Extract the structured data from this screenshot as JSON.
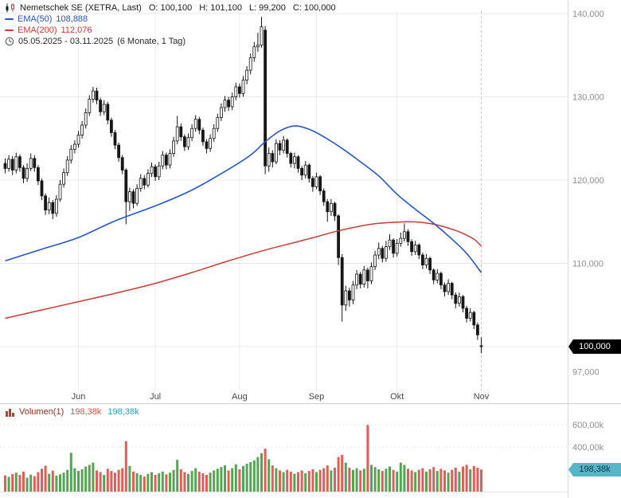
{
  "header": {
    "instrument": "Nemetschek SE (XETRA, Last)",
    "ohlc": [
      {
        "label": "O:",
        "value": "100,100"
      },
      {
        "label": "H:",
        "value": "101,100"
      },
      {
        "label": "L:",
        "value": "99,200"
      },
      {
        "label": "C:",
        "value": "100,000"
      }
    ],
    "ema50": {
      "label": "EMA(50)",
      "value": "108,888"
    },
    "ema200": {
      "label": "EMA(200)",
      "value": "112,076"
    },
    "date_range": "05.05.2025 - 03.11.2025",
    "period": "(6 Monate, 1 Tag)"
  },
  "price_badge": "100,000",
  "volume_pane": {
    "label": "Volumen(1)",
    "value_red": "198,38k",
    "value_teal": "198,38k",
    "badge": "198,38k"
  },
  "colors": {
    "candle_up": "#ffffff",
    "candle_down": "#161616",
    "ema50": "#2457c5",
    "ema200": "#cc3b33",
    "volume_up": "#55a455",
    "volume_down": "#dd5f57",
    "volume_label": "#9c2b23",
    "volume_value_red": "#e05248",
    "volume_value_teal": "#2ba3bc",
    "badge_price_bg": "#000000",
    "badge_price_text": "#ffffff",
    "badge_volume_bg": "#54b6c8",
    "badge_volume_text": "#0b3a44",
    "grid": "#eaeaea"
  },
  "chart_data": {
    "type": "candlestick+volume",
    "title": "Nemetschek SE (XETRA, Last)",
    "date_range": {
      "start": "05.05.2025",
      "end": "03.11.2025",
      "period": "6 Monate",
      "interval": "1 Tag"
    },
    "last": {
      "open": 100.1,
      "high": 101.1,
      "low": 99.2,
      "close": 100.0
    },
    "ema50_value": 108.888,
    "ema200_value": 112.076,
    "last_volume_k": 198.38,
    "unit_note": "prices shown in thousands (axis labels e.g. 100,000); volume in k shares",
    "candle_format": [
      "open",
      "high",
      "low",
      "close"
    ],
    "y_axis": {
      "ticks": [
        {
          "v": 140,
          "label": "140,000",
          "grid": true
        },
        {
          "v": 130,
          "label": "130,000",
          "grid": true
        },
        {
          "v": 120,
          "label": "120,000",
          "grid": true
        },
        {
          "v": 110,
          "label": "110,000",
          "grid": true
        },
        {
          "v": 100,
          "label": "100,000",
          "grid": true
        },
        {
          "v": 97,
          "label": "97,000",
          "grid": false
        }
      ]
    },
    "x_axis": {
      "months": [
        {
          "i": 20,
          "label": "Jun"
        },
        {
          "i": 41,
          "label": "Jul"
        },
        {
          "i": 64,
          "label": "Aug"
        },
        {
          "i": 85,
          "label": "Sep"
        },
        {
          "i": 107,
          "label": "Okt"
        },
        {
          "i": 130,
          "label": "Nov",
          "last": true
        }
      ]
    },
    "volume_axis": {
      "ticks": [
        {
          "v": 600,
          "label": "600,00k"
        },
        {
          "v": 400,
          "label": "400,00k"
        }
      ]
    },
    "candles": [
      [
        122.0,
        122.6,
        120.8,
        121.4
      ],
      [
        121.4,
        123.0,
        121.0,
        122.5
      ],
      [
        122.5,
        122.9,
        120.6,
        121.2
      ],
      [
        121.2,
        123.3,
        120.8,
        122.8
      ],
      [
        122.8,
        123.1,
        121.0,
        121.5
      ],
      [
        121.5,
        121.8,
        119.6,
        120.2
      ],
      [
        120.2,
        122.0,
        119.8,
        121.4
      ],
      [
        121.4,
        123.2,
        121.1,
        122.6
      ],
      [
        122.6,
        123.0,
        121.0,
        121.5
      ],
      [
        121.5,
        121.8,
        119.4,
        119.9
      ],
      [
        119.9,
        120.2,
        117.6,
        118.1
      ],
      [
        118.1,
        118.4,
        115.8,
        116.4
      ],
      [
        116.4,
        117.9,
        115.9,
        117.3
      ],
      [
        117.3,
        117.6,
        115.3,
        116.0
      ],
      [
        116.0,
        118.2,
        115.6,
        117.7
      ],
      [
        117.7,
        120.0,
        117.4,
        119.5
      ],
      [
        119.5,
        121.4,
        119.1,
        120.9
      ],
      [
        120.9,
        122.9,
        120.5,
        122.4
      ],
      [
        122.4,
        124.2,
        122.0,
        123.7
      ],
      [
        123.7,
        124.8,
        123.2,
        124.3
      ],
      [
        124.3,
        125.9,
        123.9,
        125.4
      ],
      [
        125.4,
        127.1,
        125.0,
        126.6
      ],
      [
        126.6,
        128.6,
        126.2,
        128.1
      ],
      [
        128.1,
        130.2,
        127.7,
        129.7
      ],
      [
        129.7,
        131.2,
        129.3,
        130.7
      ],
      [
        130.7,
        131.1,
        129.1,
        129.6
      ],
      [
        129.6,
        129.9,
        127.7,
        128.2
      ],
      [
        128.2,
        129.6,
        127.8,
        129.1
      ],
      [
        129.1,
        129.4,
        126.7,
        127.2
      ],
      [
        127.2,
        127.5,
        125.2,
        125.7
      ],
      [
        125.7,
        126.0,
        123.7,
        124.2
      ],
      [
        124.2,
        124.5,
        122.2,
        122.7
      ],
      [
        122.7,
        123.0,
        120.7,
        121.2
      ],
      [
        121.2,
        121.4,
        114.7,
        117.4
      ],
      [
        117.4,
        119.1,
        116.3,
        118.6
      ],
      [
        118.6,
        118.9,
        116.6,
        117.2
      ],
      [
        117.2,
        119.5,
        116.9,
        119.0
      ],
      [
        119.0,
        120.7,
        118.6,
        120.2
      ],
      [
        120.2,
        120.6,
        118.9,
        119.4
      ],
      [
        119.4,
        121.3,
        119.1,
        120.8
      ],
      [
        120.8,
        122.1,
        120.4,
        121.6
      ],
      [
        121.6,
        121.9,
        119.9,
        120.4
      ],
      [
        120.4,
        122.2,
        120.0,
        121.7
      ],
      [
        121.7,
        123.5,
        121.3,
        123.0
      ],
      [
        123.0,
        123.3,
        121.3,
        121.8
      ],
      [
        121.8,
        123.7,
        121.4,
        123.2
      ],
      [
        123.2,
        125.2,
        122.8,
        124.7
      ],
      [
        124.7,
        127.7,
        124.3,
        126.4
      ],
      [
        126.4,
        126.8,
        124.7,
        125.2
      ],
      [
        125.2,
        125.5,
        123.5,
        124.0
      ],
      [
        124.0,
        125.6,
        123.6,
        125.1
      ],
      [
        125.1,
        126.7,
        124.7,
        126.2
      ],
      [
        126.2,
        127.8,
        125.8,
        127.3
      ],
      [
        127.3,
        127.6,
        125.5,
        126.0
      ],
      [
        126.0,
        126.3,
        124.1,
        124.6
      ],
      [
        124.6,
        124.9,
        123.2,
        123.8
      ],
      [
        123.8,
        125.5,
        123.4,
        125.0
      ],
      [
        125.0,
        126.7,
        124.6,
        126.2
      ],
      [
        126.2,
        128.0,
        125.8,
        127.5
      ],
      [
        127.5,
        129.2,
        127.1,
        128.7
      ],
      [
        128.7,
        130.1,
        128.2,
        129.6
      ],
      [
        129.6,
        130.0,
        128.3,
        128.8
      ],
      [
        128.8,
        130.5,
        128.4,
        130.0
      ],
      [
        130.0,
        131.7,
        129.6,
        131.2
      ],
      [
        131.2,
        131.6,
        129.9,
        130.4
      ],
      [
        130.4,
        132.5,
        130.0,
        132.0
      ],
      [
        132.0,
        133.7,
        131.5,
        133.2
      ],
      [
        133.2,
        135.2,
        132.7,
        134.7
      ],
      [
        134.7,
        136.6,
        134.2,
        136.0
      ],
      [
        136.0,
        137.7,
        135.4,
        136.2
      ],
      [
        136.2,
        139.6,
        135.9,
        138.4
      ],
      [
        138.0,
        138.5,
        120.7,
        121.7
      ],
      [
        121.7,
        123.9,
        121.0,
        123.2
      ],
      [
        123.2,
        123.6,
        121.5,
        122.2
      ],
      [
        122.2,
        124.9,
        121.9,
        124.4
      ],
      [
        124.4,
        124.8,
        123.0,
        123.6
      ],
      [
        123.6,
        125.3,
        123.2,
        124.8
      ],
      [
        124.8,
        125.0,
        122.7,
        123.2
      ],
      [
        123.2,
        123.4,
        121.5,
        122.0
      ],
      [
        122.0,
        123.3,
        121.4,
        122.8
      ],
      [
        122.8,
        123.0,
        120.9,
        121.4
      ],
      [
        121.4,
        121.7,
        120.0,
        120.6
      ],
      [
        120.6,
        122.3,
        120.2,
        121.8
      ],
      [
        121.8,
        122.0,
        119.7,
        120.2
      ],
      [
        120.2,
        120.5,
        118.6,
        119.2
      ],
      [
        119.2,
        120.9,
        118.9,
        120.4
      ],
      [
        120.4,
        120.6,
        118.2,
        118.7
      ],
      [
        118.7,
        119.0,
        116.9,
        117.4
      ],
      [
        117.4,
        117.7,
        115.0,
        116.2
      ],
      [
        116.2,
        117.7,
        115.7,
        117.2
      ],
      [
        117.2,
        117.4,
        115.1,
        115.7
      ],
      [
        115.7,
        115.9,
        109.8,
        110.7
      ],
      [
        110.7,
        111.1,
        103.0,
        105.0
      ],
      [
        105.0,
        107.3,
        104.3,
        106.7
      ],
      [
        106.7,
        107.1,
        104.8,
        105.6
      ],
      [
        105.6,
        107.9,
        105.1,
        107.4
      ],
      [
        107.4,
        109.2,
        106.9,
        108.7
      ],
      [
        108.7,
        109.0,
        107.0,
        107.5
      ],
      [
        107.5,
        109.7,
        107.1,
        109.2
      ],
      [
        109.2,
        109.5,
        107.0,
        107.9
      ],
      [
        107.9,
        110.1,
        107.5,
        109.6
      ],
      [
        109.6,
        111.5,
        109.2,
        111.0
      ],
      [
        111.0,
        112.5,
        110.5,
        111.8
      ],
      [
        111.8,
        112.1,
        110.1,
        110.6
      ],
      [
        110.6,
        112.7,
        110.2,
        112.0
      ],
      [
        112.0,
        113.5,
        111.6,
        112.8
      ],
      [
        112.8,
        113.0,
        110.7,
        111.2
      ],
      [
        111.2,
        112.9,
        110.8,
        112.4
      ],
      [
        112.4,
        113.7,
        112.0,
        113.0
      ],
      [
        113.0,
        114.8,
        112.6,
        113.8
      ],
      [
        113.8,
        114.1,
        112.1,
        112.6
      ],
      [
        112.6,
        112.9,
        110.9,
        111.4
      ],
      [
        111.4,
        112.7,
        111.0,
        112.2
      ],
      [
        112.2,
        112.4,
        110.5,
        111.0
      ],
      [
        111.0,
        111.3,
        109.3,
        109.8
      ],
      [
        109.8,
        111.1,
        109.4,
        110.6
      ],
      [
        110.6,
        110.8,
        108.7,
        109.2
      ],
      [
        109.2,
        109.4,
        107.5,
        108.0
      ],
      [
        108.0,
        109.3,
        107.6,
        108.8
      ],
      [
        108.8,
        109.0,
        106.9,
        107.4
      ],
      [
        107.4,
        107.7,
        106.0,
        106.6
      ],
      [
        106.6,
        108.1,
        106.2,
        107.6
      ],
      [
        107.6,
        107.8,
        105.7,
        106.2
      ],
      [
        106.2,
        106.5,
        104.6,
        105.2
      ],
      [
        105.2,
        106.5,
        104.8,
        106.0
      ],
      [
        106.0,
        106.2,
        104.1,
        104.6
      ],
      [
        104.6,
        104.9,
        102.9,
        103.4
      ],
      [
        103.4,
        104.6,
        103.0,
        104.1
      ],
      [
        104.1,
        104.3,
        102.1,
        102.6
      ],
      [
        102.6,
        102.9,
        100.8,
        101.4
      ],
      [
        100.1,
        101.1,
        99.2,
        100.0
      ]
    ],
    "volumes_k": [
      145,
      132,
      158,
      170,
      149,
      180,
      125,
      152,
      138,
      175,
      205,
      232,
      160,
      188,
      142,
      155,
      170,
      195,
      348,
      210,
      185,
      200,
      225,
      240,
      260,
      190,
      175,
      150,
      205,
      185,
      170,
      195,
      210,
      452,
      230,
      180,
      165,
      150,
      135,
      160,
      175,
      150,
      165,
      180,
      155,
      170,
      195,
      285,
      200,
      175,
      160,
      185,
      210,
      180,
      165,
      150,
      170,
      190,
      205,
      220,
      235,
      190,
      210,
      245,
      200,
      230,
      250,
      265,
      280,
      310,
      345,
      385,
      290,
      235,
      210,
      190,
      175,
      195,
      180,
      160,
      175,
      190,
      165,
      185,
      200,
      175,
      195,
      210,
      235,
      190,
      215,
      310,
      330,
      260,
      215,
      195,
      210,
      190,
      205,
      597,
      240,
      220,
      200,
      185,
      205,
      225,
      195,
      180,
      260,
      240,
      205,
      190,
      175,
      195,
      210,
      180,
      200,
      220,
      185,
      205,
      190,
      170,
      195,
      215,
      180,
      225,
      240,
      200,
      230,
      215,
      198.38
    ],
    "ema50_points": [
      [
        0,
        110.3
      ],
      [
        10,
        111.7
      ],
      [
        20,
        113.1
      ],
      [
        30,
        115.1
      ],
      [
        41,
        116.9
      ],
      [
        51,
        118.8
      ],
      [
        61,
        121.3
      ],
      [
        67,
        123.0
      ],
      [
        71,
        124.6
      ],
      [
        75,
        125.9
      ],
      [
        79,
        126.5
      ],
      [
        83,
        126.1
      ],
      [
        87,
        125.2
      ],
      [
        92,
        123.8
      ],
      [
        97,
        122.2
      ],
      [
        102,
        120.5
      ],
      [
        107,
        118.3
      ],
      [
        112,
        116.5
      ],
      [
        117,
        114.8
      ],
      [
        122,
        112.9
      ],
      [
        126,
        111.2
      ],
      [
        130,
        108.888
      ]
    ],
    "ema200_points": [
      [
        0,
        103.4
      ],
      [
        10,
        104.4
      ],
      [
        20,
        105.4
      ],
      [
        30,
        106.4
      ],
      [
        41,
        107.6
      ],
      [
        51,
        108.9
      ],
      [
        61,
        110.3
      ],
      [
        71,
        111.6
      ],
      [
        79,
        112.5
      ],
      [
        85,
        113.2
      ],
      [
        90,
        113.8
      ],
      [
        95,
        114.3
      ],
      [
        100,
        114.7
      ],
      [
        105,
        114.9
      ],
      [
        110,
        115.0
      ],
      [
        114,
        114.9
      ],
      [
        118,
        114.6
      ],
      [
        122,
        114.1
      ],
      [
        125,
        113.6
      ],
      [
        128,
        112.9
      ],
      [
        130,
        112.076
      ]
    ]
  }
}
